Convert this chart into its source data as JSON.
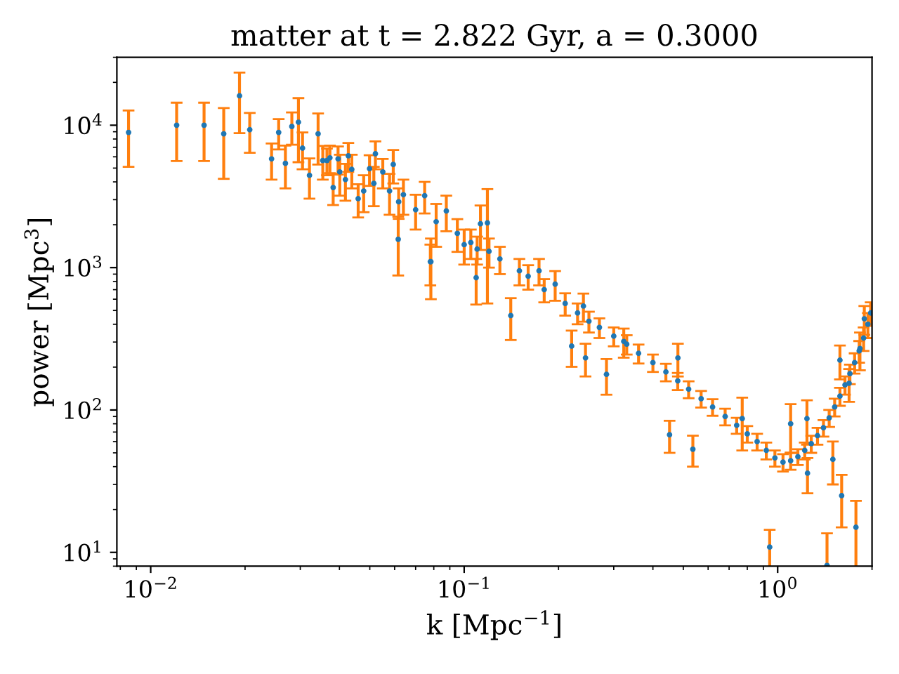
{
  "chart_data": {
    "type": "scatter",
    "title": "matter at t = 2.822 Gyr, a = 0.3000",
    "xlabel": "k [Mpc$^{−1}$]",
    "ylabel": "power [Mpc$^{3}$]",
    "log": "xy",
    "grid": false,
    "marker": "circle",
    "xlim": [
      0.0078,
      2.0
    ],
    "ylim": [
      8,
      30000
    ],
    "xticks": [
      {
        "value": 0.01,
        "label": "10$^{−2}$"
      },
      {
        "value": 0.1,
        "label": "10$^{−1}$"
      },
      {
        "value": 1,
        "label": "10$^{0}$"
      }
    ],
    "yticks": [
      {
        "value": 10,
        "label": "10$^{1}$"
      },
      {
        "value": 100,
        "label": "10$^{2}$"
      },
      {
        "value": 1000,
        "label": "10$^{3}$"
      },
      {
        "value": 10000,
        "label": "10$^{4}$"
      }
    ],
    "series": [
      {
        "color": "#1f77b4",
        "x": [
          0.0085,
          0.0121,
          0.0148,
          0.0171,
          0.0192,
          0.0207,
          0.0243,
          0.0256,
          0.0269,
          0.0282,
          0.0296,
          0.0305,
          0.0321,
          0.0342,
          0.0354,
          0.0365,
          0.0373,
          0.0382,
          0.0396,
          0.0401,
          0.0418,
          0.0427,
          0.0438,
          0.0459,
          0.0478,
          0.0499,
          0.0515,
          0.0521,
          0.055,
          0.0578,
          0.0594,
          0.0618,
          0.0616,
          0.064,
          0.07,
          0.0748,
          0.078,
          0.0783,
          0.0814,
          0.0877,
          0.0951,
          0.1,
          0.105,
          0.1092,
          0.11,
          0.1127,
          0.1186,
          0.12,
          0.13,
          0.1408,
          0.15,
          0.16,
          0.1733,
          0.18,
          0.1951,
          0.21,
          0.2202,
          0.23,
          0.2401,
          0.2438,
          0.25,
          0.27,
          0.2844,
          0.3,
          0.3229,
          0.33,
          0.36,
          0.4,
          0.44,
          0.452,
          0.48,
          0.4806,
          0.52,
          0.5364,
          0.57,
          0.62,
          0.68,
          0.74,
          0.7708,
          0.8,
          0.86,
          0.92,
          0.9431,
          0.98,
          1.04,
          1.1,
          1.1,
          1.16,
          1.22,
          1.24,
          1.245,
          1.28,
          1.34,
          1.4,
          1.437,
          1.46,
          1.5,
          1.52,
          1.58,
          1.58,
          1.6,
          1.64,
          1.69,
          1.7,
          1.76,
          1.777,
          1.82,
          1.83,
          1.88,
          1.89,
          1.94,
          1.98
        ],
        "values": [
          8900,
          10000,
          10000,
          8700,
          16100,
          9300,
          5800,
          8900,
          5400,
          9800,
          10500,
          6900,
          4450,
          8700,
          5650,
          5650,
          5900,
          3650,
          5800,
          4700,
          4150,
          6100,
          4900,
          3050,
          3450,
          4950,
          3900,
          6300,
          4700,
          3450,
          5300,
          2900,
          1580,
          3250,
          2550,
          3200,
          1100,
          1100,
          2100,
          2500,
          1740,
          1450,
          1500,
          850,
          1350,
          2030,
          2060,
          1300,
          1150,
          460,
          950,
          870,
          950,
          700,
          765,
          560,
          281,
          480,
          537,
          232,
          420,
          380,
          178,
          330,
          303,
          290,
          250,
          215,
          185,
          67,
          160,
          232,
          140,
          53,
          120,
          105,
          90,
          78,
          87,
          68,
          60,
          52,
          10.9,
          46,
          43,
          44,
          80,
          47,
          52,
          87,
          36,
          58,
          66,
          75,
          8.1,
          88,
          45,
          105,
          125,
          224,
          25,
          150,
          154,
          180,
          215,
          15,
          260,
          270,
          320,
          437,
          400,
          480
        ],
        "errors": [
          3800,
          4400,
          4400,
          4500,
          7300,
          2900,
          1650,
          2150,
          1800,
          2500,
          5000,
          2000,
          1400,
          3400,
          1500,
          1200,
          1300,
          900,
          1300,
          1500,
          1200,
          1400,
          1300,
          800,
          1000,
          1200,
          1200,
          1400,
          1100,
          1100,
          1400,
          700,
          700,
          900,
          700,
          800,
          350,
          500,
          700,
          700,
          450,
          400,
          350,
          300,
          300,
          700,
          1500,
          300,
          250,
          150,
          200,
          170,
          200,
          130,
          180,
          100,
          80,
          80,
          120,
          60,
          70,
          60,
          50,
          50,
          70,
          45,
          38,
          30,
          26,
          17,
          22,
          60,
          19,
          13,
          16,
          14,
          12,
          10,
          35,
          9,
          8,
          7,
          3.5,
          6,
          6,
          6,
          30,
          6,
          7,
          30,
          10,
          8,
          9,
          10,
          5.5,
          12,
          15,
          15,
          18,
          60,
          10,
          22,
          40,
          28,
          35,
          8,
          45,
          80,
          60,
          100,
          80,
          90
        ]
      }
    ]
  }
}
